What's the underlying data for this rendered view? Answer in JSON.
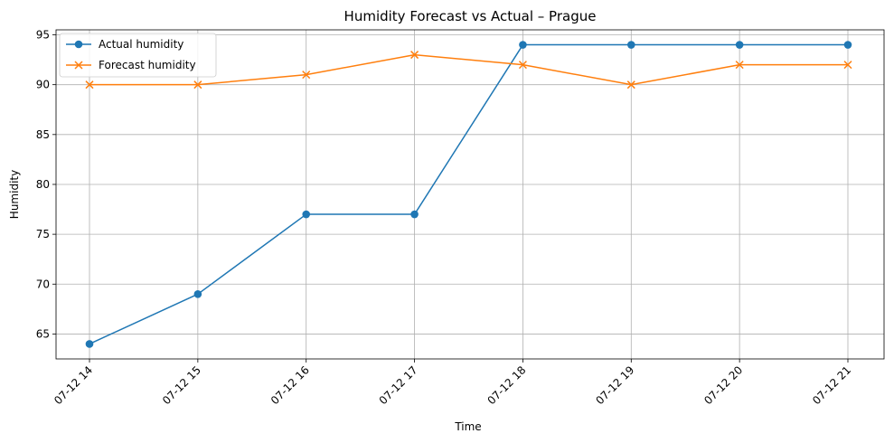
{
  "chart_data": {
    "type": "line",
    "title": "Humidity Forecast vs Actual – Prague",
    "xlabel": "Time",
    "ylabel": "Humidity",
    "categories": [
      "07-12 14",
      "07-12 15",
      "07-12 16",
      "07-12 17",
      "07-12 18",
      "07-12 19",
      "07-12 20",
      "07-12 21"
    ],
    "yticks": [
      65,
      70,
      75,
      80,
      85,
      90,
      95
    ],
    "ylim": [
      62.5,
      95.5
    ],
    "grid": true,
    "legend_position": "top-left",
    "series": [
      {
        "name": "Actual humidity",
        "values": [
          64,
          69,
          77,
          77,
          94,
          94,
          94,
          94
        ],
        "color": "#1f77b4",
        "marker": "circle"
      },
      {
        "name": "Forecast humidity",
        "values": [
          90,
          90,
          91,
          93,
          92,
          90,
          92,
          92
        ],
        "color": "#ff7f0e",
        "marker": "x"
      }
    ]
  }
}
